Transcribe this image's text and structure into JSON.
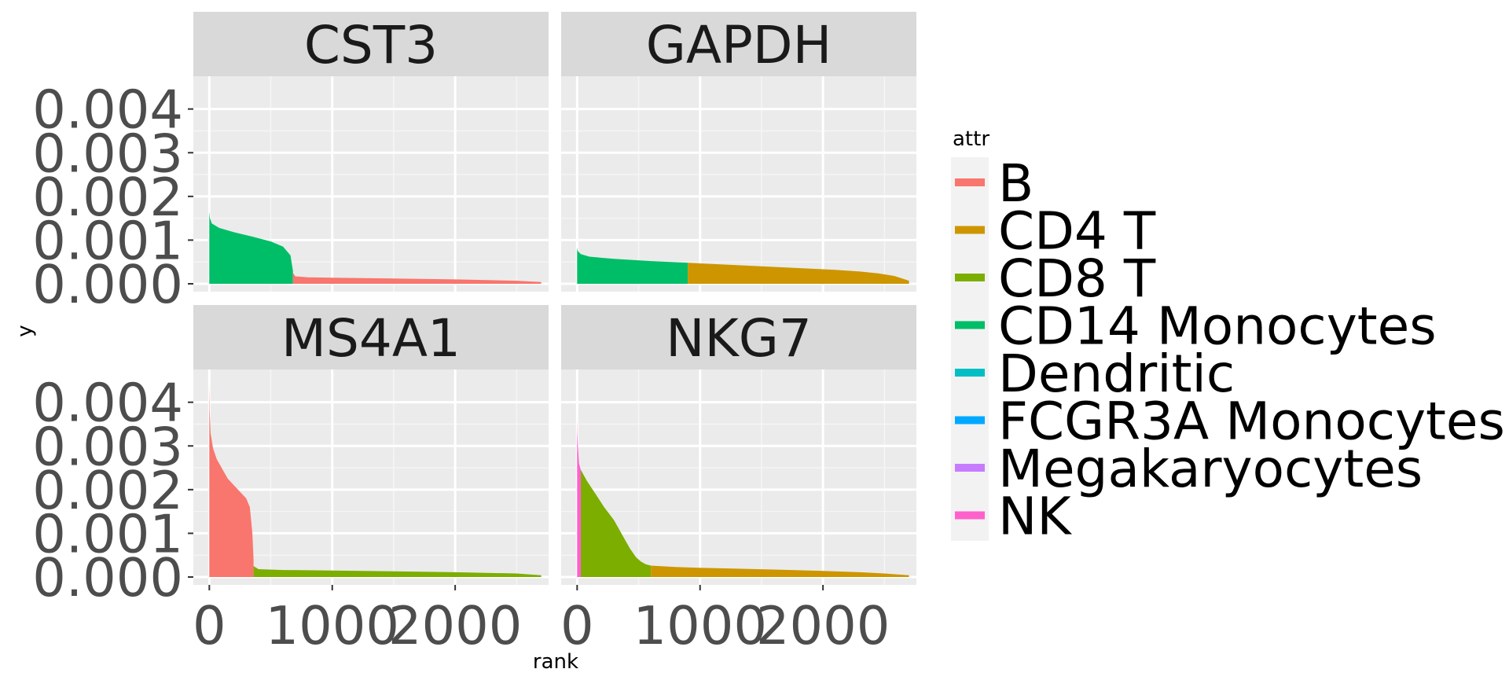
{
  "chart_data": {
    "type": "area",
    "facets": [
      "CST3",
      "GAPDH",
      "MS4A1",
      "NKG7"
    ],
    "xlabel": "rank",
    "ylabel": "y",
    "x_ticks": [
      0,
      1000,
      2000
    ],
    "x_tick_labels": [
      "0",
      "1000",
      "2000"
    ],
    "y_ticks": [
      0,
      0.001,
      0.002,
      0.003,
      0.004
    ],
    "y_tick_labels": [
      "0.000",
      "0.001",
      "0.002",
      "0.003",
      "0.004"
    ],
    "xlim": [
      -130,
      2760
    ],
    "ylim": [
      -0.00018,
      0.00475
    ],
    "grid": true,
    "legend": {
      "title": "attr",
      "placement": "right",
      "entries": [
        {
          "name": "B",
          "color": "#F8766D"
        },
        {
          "name": "CD4 T",
          "color": "#CD9600"
        },
        {
          "name": "CD8 T",
          "color": "#7CAE00"
        },
        {
          "name": "CD14 Monocytes",
          "color": "#00BE67"
        },
        {
          "name": "Dendritic",
          "color": "#00BFC4"
        },
        {
          "name": "FCGR3A Monocytes",
          "color": "#00A9FF"
        },
        {
          "name": "Megakaryocytes",
          "color": "#C77CFF"
        },
        {
          "name": "NK",
          "color": "#FF61CC"
        }
      ]
    },
    "panels": [
      {
        "facet": "CST3",
        "segments": [
          {
            "group": "CD14 Monocytes",
            "x": [
              0,
              5,
              20,
              80,
              200,
              350,
              500,
              600,
              660,
              680
            ],
            "y": [
              0.00165,
              0.0015,
              0.00138,
              0.00128,
              0.00118,
              0.00108,
              0.00097,
              0.00085,
              0.00065,
              0.0003
            ]
          },
          {
            "group": "B",
            "x": [
              680,
              700,
              800,
              1000,
              1500,
              2000,
              2500,
              2700
            ],
            "y": [
              0.00025,
              0.00017,
              0.00015,
              0.00014,
              0.00012,
              0.0001,
              7e-05,
              4e-05
            ]
          }
        ]
      },
      {
        "facet": "GAPDH",
        "segments": [
          {
            "group": "CD14 Monocytes",
            "x": [
              0,
              5,
              30,
              100,
              300,
              600,
              900
            ],
            "y": [
              0.00083,
              0.00075,
              0.00068,
              0.00062,
              0.00057,
              0.00052,
              0.00048
            ]
          },
          {
            "group": "CD4 T",
            "x": [
              900,
              1200,
              1500,
              1800,
              2100,
              2300,
              2450,
              2580,
              2700
            ],
            "y": [
              0.00048,
              0.00044,
              0.0004,
              0.00036,
              0.00032,
              0.00028,
              0.00024,
              0.00018,
              7e-05
            ]
          }
        ]
      },
      {
        "facet": "MS4A1",
        "segments": [
          {
            "group": "B",
            "x": [
              0,
              3,
              10,
              30,
              60,
              100,
              150,
              200,
              250,
              300,
              330,
              350,
              360
            ],
            "y": [
              0.0044,
              0.0038,
              0.0033,
              0.00295,
              0.0027,
              0.0025,
              0.00225,
              0.0021,
              0.00195,
              0.0018,
              0.0016,
              0.001,
              0.0004
            ]
          },
          {
            "group": "CD8 T",
            "x": [
              360,
              400,
              600,
              1000,
              1500,
              2000,
              2500,
              2700
            ],
            "y": [
              0.00025,
              0.00018,
              0.00016,
              0.00015,
              0.00013,
              0.00011,
              8e-05,
              4e-05
            ]
          }
        ]
      },
      {
        "facet": "NKG7",
        "segments": [
          {
            "group": "NK",
            "x": [
              0,
              2,
              6,
              15,
              30
            ],
            "y": [
              0.00365,
              0.0033,
              0.003,
              0.0026,
              0.00245
            ]
          },
          {
            "group": "CD8 T",
            "x": [
              30,
              80,
              150,
              220,
              300,
              370,
              430,
              480,
              520,
              560,
              600
            ],
            "y": [
              0.00245,
              0.0022,
              0.0019,
              0.0016,
              0.0013,
              0.00095,
              0.00065,
              0.00045,
              0.00035,
              0.00029,
              0.00026
            ]
          },
          {
            "group": "CD4 T",
            "x": [
              600,
              800,
              1000,
              1300,
              1600,
              2000,
              2300,
              2500,
              2700
            ],
            "y": [
              0.00026,
              0.00023,
              0.00021,
              0.00019,
              0.00017,
              0.00014,
              0.00011,
              8e-05,
              4e-05
            ]
          }
        ]
      }
    ]
  }
}
